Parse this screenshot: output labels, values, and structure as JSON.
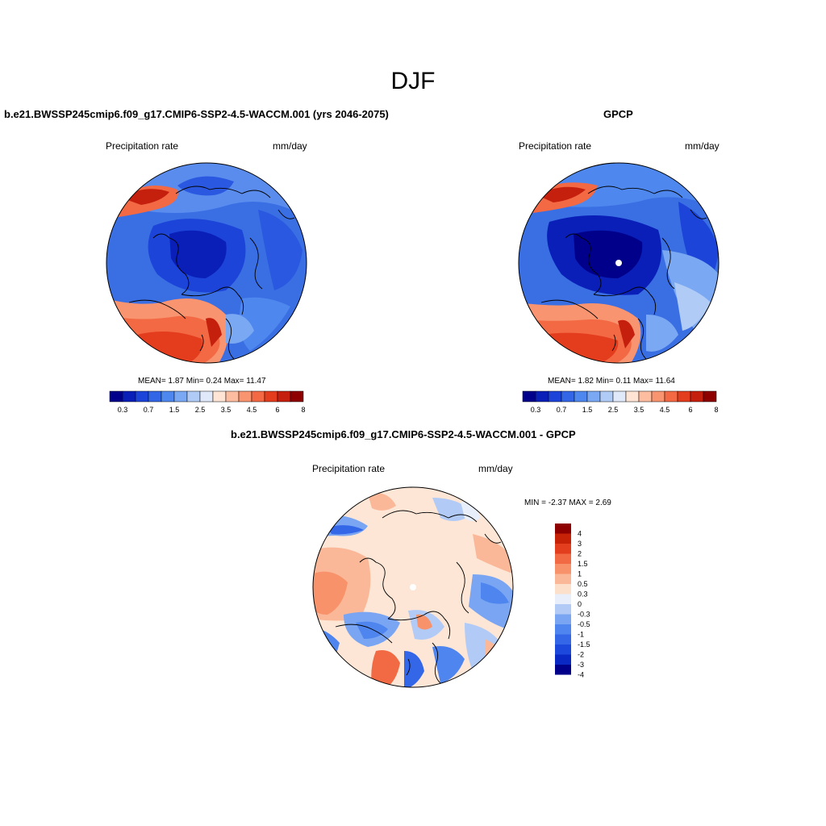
{
  "figure_title": "DJF",
  "colors": {
    "seq_colorbar": [
      "#00008b",
      "#0a1fb8",
      "#1c44d8",
      "#3266e6",
      "#4e88ee",
      "#7ba8f2",
      "#b0ccf6",
      "#dfe9fa",
      "#fde4d4",
      "#fbbca0",
      "#f89470",
      "#f26944",
      "#e33d1e",
      "#c51f0d",
      "#8e0000"
    ],
    "diff_colorbar": [
      "#00008b",
      "#0a28c4",
      "#1c48dc",
      "#3466e8",
      "#4e85ee",
      "#7aa5f2",
      "#b2cbf6",
      "#e8eefa",
      "#fde0cc",
      "#fbb898",
      "#f8926a",
      "#f26a44",
      "#e33e1e",
      "#c62208",
      "#8e0000"
    ],
    "land_outline": "#000000",
    "map_border": "#000000"
  },
  "panels": {
    "model": {
      "title": "b.e21.BWSSP245cmip6.f09_g17.CMIP6-SSP2-4.5-WACCM.001 (yrs 2046-2075)",
      "left_label": "Precipitation rate",
      "right_label": "mm/day",
      "stats": {
        "mean_label": "MEAN=",
        "mean": "1.87",
        "min_label": "Min=",
        "min": "0.24",
        "max_label": "Max=",
        "max": "11.47"
      },
      "ticks": [
        "0.3",
        "0.7",
        "1.5",
        "2.5",
        "3.5",
        "4.5",
        "6",
        "8"
      ]
    },
    "obs": {
      "title": "GPCP",
      "left_label": "Precipitation rate",
      "right_label": "mm/day",
      "stats": {
        "mean_label": "MEAN=",
        "mean": "1.82",
        "min_label": "Min=",
        "min": "0.11",
        "max_label": "Max=",
        "max": "11.64"
      },
      "ticks": [
        "0.3",
        "0.7",
        "1.5",
        "2.5",
        "3.5",
        "4.5",
        "6",
        "8"
      ]
    },
    "diff": {
      "title": "b.e21.BWSSP245cmip6.f09_g17.CMIP6-SSP2-4.5-WACCM.001 - GPCP",
      "left_label": "Precipitation rate",
      "right_label": "mm/day",
      "minmax": {
        "min_label": "MIN =",
        "min": "-2.37",
        "max_label": "MAX =",
        "max": "2.69"
      },
      "ticks": [
        "4",
        "3",
        "2",
        "1.5",
        "1",
        "0.5",
        "0.3",
        "0",
        "-0.3",
        "-0.5",
        "-1",
        "-1.5",
        "-2",
        "-3",
        "-4"
      ]
    }
  }
}
